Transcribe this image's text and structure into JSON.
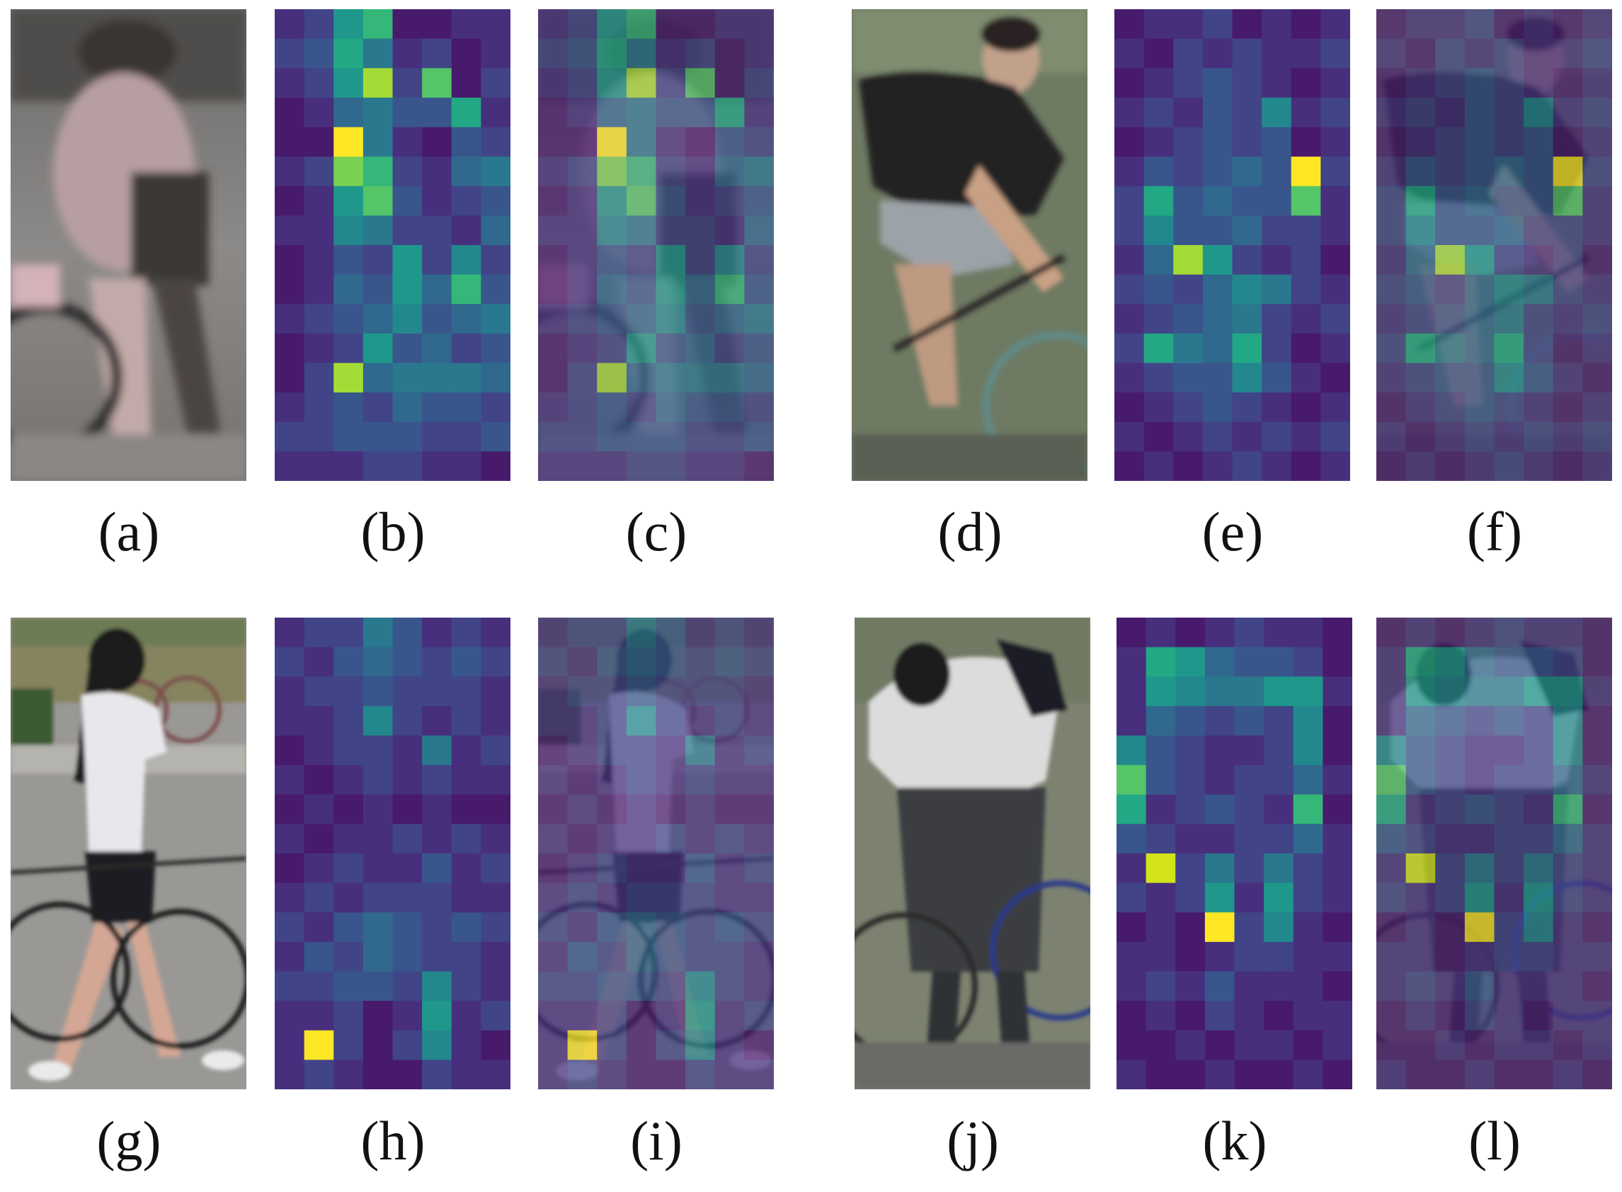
{
  "figure": {
    "palette": [
      "#440154",
      "#481a6c",
      "#472f7d",
      "#414487",
      "#39568c",
      "#31688e",
      "#2a788e",
      "#23888e",
      "#1f988b",
      "#22a884",
      "#35b779",
      "#54c568",
      "#7ad151",
      "#a5db36",
      "#d2e21b",
      "#fde725"
    ],
    "rows": [
      {
        "subject_colors": [
          "#8a8684",
          "#6a6460",
          "#b3a0a2",
          "#4a4442"
        ],
        "heat_a": [
          [
            2,
            3,
            8,
            10,
            1,
            1,
            2,
            2
          ],
          [
            3,
            4,
            9,
            6,
            2,
            3,
            1,
            2
          ],
          [
            2,
            3,
            8,
            13,
            3,
            11,
            1,
            3
          ],
          [
            1,
            2,
            5,
            6,
            4,
            4,
            9,
            2
          ],
          [
            1,
            1,
            15,
            6,
            2,
            1,
            4,
            3
          ],
          [
            2,
            3,
            12,
            10,
            3,
            2,
            5,
            6
          ],
          [
            1,
            2,
            8,
            11,
            4,
            2,
            3,
            4
          ],
          [
            2,
            2,
            7,
            6,
            3,
            3,
            2,
            5
          ],
          [
            1,
            2,
            4,
            3,
            8,
            3,
            7,
            3
          ],
          [
            1,
            2,
            5,
            4,
            8,
            5,
            10,
            4
          ],
          [
            2,
            3,
            4,
            5,
            7,
            4,
            5,
            6
          ],
          [
            1,
            2,
            3,
            8,
            4,
            5,
            3,
            4
          ],
          [
            1,
            3,
            13,
            5,
            6,
            6,
            6,
            5
          ],
          [
            2,
            3,
            4,
            3,
            5,
            4,
            4,
            3
          ],
          [
            3,
            3,
            4,
            4,
            4,
            3,
            3,
            4
          ],
          [
            2,
            2,
            2,
            3,
            3,
            2,
            2,
            1
          ]
        ],
        "subject_colors_b": [
          "#5f6b52",
          "#2a2826",
          "#c59f85",
          "#3e4a52"
        ],
        "heat_b": [
          [
            1,
            2,
            2,
            3,
            1,
            2,
            1,
            2
          ],
          [
            2,
            1,
            3,
            2,
            3,
            2,
            2,
            3
          ],
          [
            1,
            2,
            3,
            4,
            3,
            2,
            1,
            2
          ],
          [
            2,
            3,
            2,
            4,
            3,
            7,
            2,
            3
          ],
          [
            1,
            2,
            3,
            4,
            3,
            4,
            1,
            2
          ],
          [
            2,
            4,
            3,
            4,
            5,
            4,
            15,
            3
          ],
          [
            3,
            9,
            4,
            5,
            4,
            4,
            11,
            2
          ],
          [
            3,
            7,
            4,
            4,
            5,
            3,
            3,
            2
          ],
          [
            2,
            5,
            13,
            8,
            3,
            2,
            3,
            1
          ],
          [
            3,
            4,
            3,
            5,
            7,
            6,
            3,
            2
          ],
          [
            2,
            3,
            4,
            5,
            6,
            3,
            2,
            3
          ],
          [
            3,
            9,
            6,
            5,
            9,
            3,
            1,
            2
          ],
          [
            2,
            3,
            4,
            4,
            7,
            4,
            2,
            1
          ],
          [
            1,
            2,
            3,
            4,
            3,
            2,
            1,
            2
          ],
          [
            2,
            1,
            2,
            3,
            2,
            3,
            2,
            3
          ],
          [
            1,
            2,
            1,
            2,
            3,
            2,
            1,
            2
          ]
        ]
      },
      {
        "subject_colors": [
          "#6b7a5a",
          "#e8e6ea",
          "#1d1c22",
          "#c8a497"
        ],
        "heat_a": [
          [
            2,
            3,
            3,
            6,
            4,
            2,
            3,
            2
          ],
          [
            3,
            2,
            4,
            5,
            4,
            3,
            4,
            3
          ],
          [
            2,
            3,
            3,
            4,
            3,
            3,
            3,
            2
          ],
          [
            2,
            2,
            3,
            7,
            3,
            2,
            3,
            2
          ],
          [
            1,
            2,
            3,
            3,
            2,
            6,
            2,
            3
          ],
          [
            2,
            1,
            2,
            3,
            2,
            3,
            2,
            2
          ],
          [
            1,
            2,
            1,
            2,
            1,
            2,
            1,
            1
          ],
          [
            2,
            1,
            2,
            2,
            3,
            2,
            3,
            2
          ],
          [
            1,
            2,
            3,
            2,
            2,
            4,
            2,
            3
          ],
          [
            2,
            3,
            2,
            3,
            3,
            3,
            2,
            2
          ],
          [
            3,
            2,
            4,
            5,
            4,
            3,
            4,
            3
          ],
          [
            2,
            4,
            3,
            5,
            4,
            3,
            3,
            2
          ],
          [
            3,
            3,
            4,
            4,
            3,
            7,
            3,
            2
          ],
          [
            2,
            2,
            3,
            1,
            2,
            8,
            2,
            3
          ],
          [
            2,
            15,
            3,
            1,
            3,
            7,
            2,
            1
          ],
          [
            2,
            3,
            2,
            1,
            1,
            3,
            2,
            2
          ]
        ],
        "subject_colors_b": [
          "#6f7a63",
          "#d8d8d6",
          "#272a2e",
          "#4a4e54"
        ],
        "heat_b": [
          [
            1,
            2,
            1,
            2,
            3,
            2,
            2,
            1
          ],
          [
            2,
            9,
            8,
            5,
            4,
            4,
            3,
            1
          ],
          [
            2,
            8,
            7,
            6,
            6,
            8,
            8,
            2
          ],
          [
            2,
            5,
            4,
            3,
            4,
            3,
            7,
            1
          ],
          [
            7,
            4,
            3,
            2,
            2,
            3,
            7,
            1
          ],
          [
            11,
            4,
            3,
            2,
            3,
            3,
            5,
            2
          ],
          [
            9,
            2,
            3,
            4,
            3,
            2,
            10,
            1
          ],
          [
            4,
            3,
            2,
            2,
            3,
            3,
            5,
            2
          ],
          [
            2,
            14,
            3,
            6,
            3,
            6,
            3,
            2
          ],
          [
            3,
            2,
            3,
            8,
            2,
            8,
            3,
            2
          ],
          [
            1,
            2,
            1,
            15,
            3,
            7,
            2,
            1
          ],
          [
            2,
            2,
            1,
            2,
            3,
            3,
            2,
            2
          ],
          [
            2,
            3,
            2,
            4,
            2,
            2,
            2,
            1
          ],
          [
            1,
            2,
            1,
            3,
            2,
            1,
            2,
            2
          ],
          [
            1,
            1,
            2,
            1,
            2,
            2,
            1,
            2
          ],
          [
            2,
            1,
            1,
            2,
            1,
            1,
            2,
            1
          ]
        ]
      }
    ]
  },
  "captions": {
    "a": "(a)",
    "b": "(b)",
    "c": "(c)",
    "d": "(d)",
    "e": "(e)",
    "f": "(f)",
    "g": "(g)",
    "h": "(h)",
    "i": "(i)",
    "j": "(j)",
    "k": "(k)",
    "l": "(l)"
  }
}
